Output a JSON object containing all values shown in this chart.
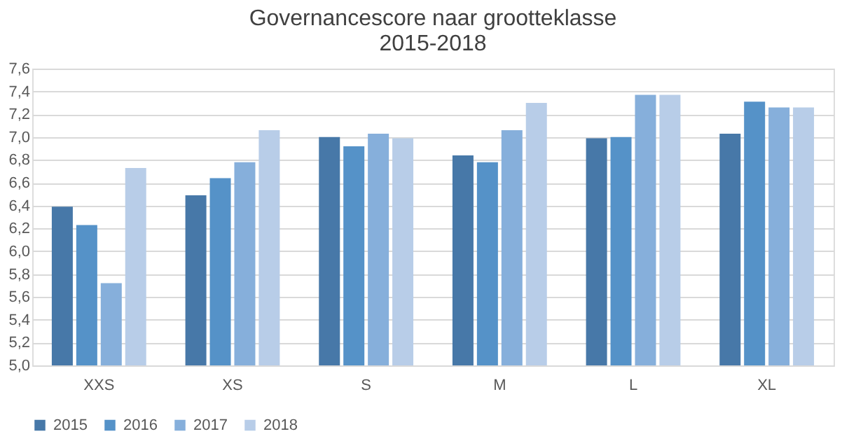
{
  "chart_data": {
    "type": "bar",
    "title": [
      "Governancescore naar grootteklasse",
      "2015-2018"
    ],
    "categories": [
      "XXS",
      "XS",
      "S",
      "M",
      "L",
      "XL"
    ],
    "series": [
      {
        "name": "2015",
        "color": "#4778a8",
        "values": [
          6.39,
          6.49,
          7.0,
          6.84,
          6.99,
          7.03
        ]
      },
      {
        "name": "2016",
        "color": "#5592c8",
        "values": [
          6.23,
          6.64,
          6.92,
          6.78,
          7.0,
          7.31
        ]
      },
      {
        "name": "2017",
        "color": "#86afdb",
        "values": [
          5.72,
          6.78,
          7.03,
          7.06,
          7.37,
          7.26
        ]
      },
      {
        "name": "2018",
        "color": "#b8cde8",
        "values": [
          6.73,
          7.06,
          6.99,
          7.3,
          7.37,
          7.26
        ]
      }
    ],
    "ylim": [
      5.0,
      7.6
    ],
    "yticks": [
      {
        "value": 5.0,
        "label": "5,0"
      },
      {
        "value": 5.2,
        "label": "5,2"
      },
      {
        "value": 5.4,
        "label": "5,4"
      },
      {
        "value": 5.6,
        "label": "5,6"
      },
      {
        "value": 5.8,
        "label": "5,8"
      },
      {
        "value": 6.0,
        "label": "6,0"
      },
      {
        "value": 6.2,
        "label": "6,2"
      },
      {
        "value": 6.4,
        "label": "6,4"
      },
      {
        "value": 6.6,
        "label": "6,6"
      },
      {
        "value": 6.8,
        "label": "6,8"
      },
      {
        "value": 7.0,
        "label": "7,0"
      },
      {
        "value": 7.2,
        "label": "7,2"
      },
      {
        "value": 7.4,
        "label": "7,4"
      },
      {
        "value": 7.6,
        "label": "7,6"
      }
    ],
    "grid": "y",
    "legend": "bottom"
  }
}
